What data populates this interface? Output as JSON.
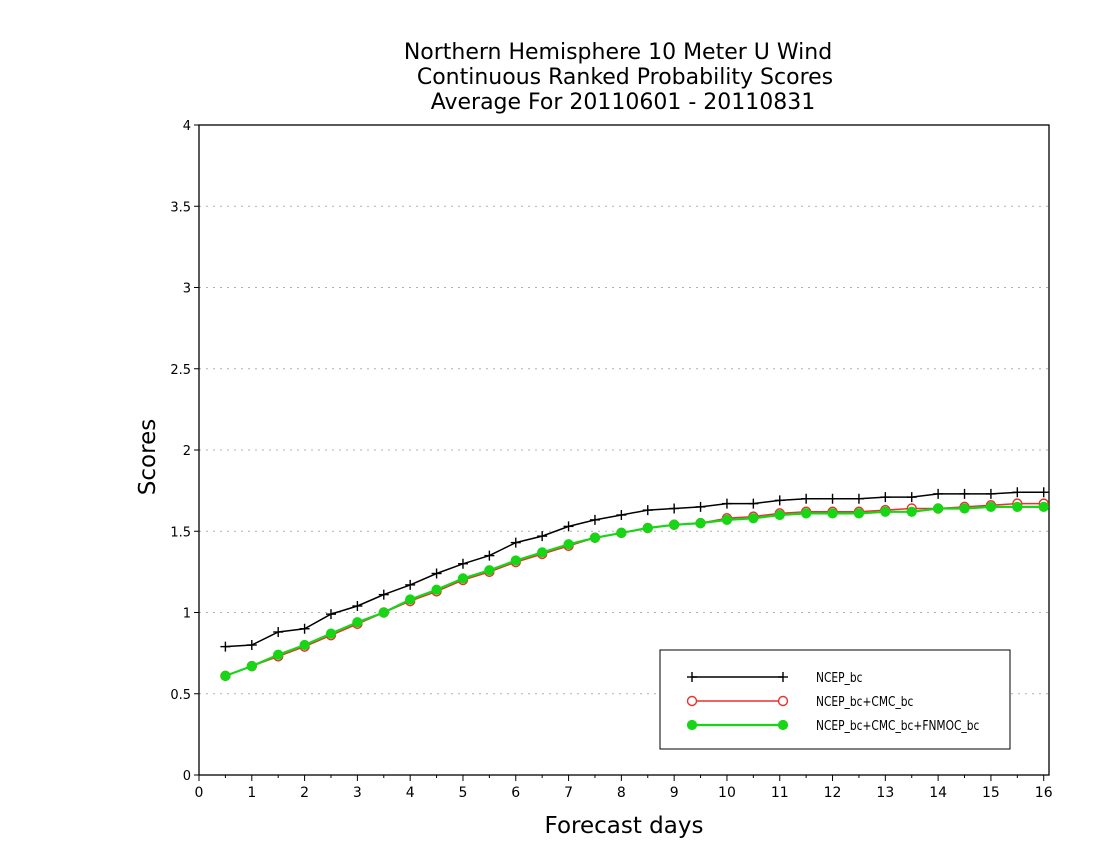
{
  "chart_data": {
    "type": "line",
    "title_lines": [
      "Northern Hemisphere 10 Meter U Wind",
      "Continuous Ranked Probability Scores",
      "Average For 20110601 - 20110831"
    ],
    "xlabel": "Forecast days",
    "ylabel": "Scores",
    "xlim": [
      0,
      16.1
    ],
    "ylim": [
      0,
      4
    ],
    "x_ticks": [
      0,
      1,
      2,
      3,
      4,
      5,
      6,
      7,
      8,
      9,
      10,
      11,
      12,
      13,
      14,
      15,
      16
    ],
    "y_ticks": [
      0,
      0.5,
      1,
      1.5,
      2,
      2.5,
      3,
      3.5,
      4
    ],
    "y_grid": true,
    "legend_position": "bottom-right",
    "x": [
      0.5,
      1,
      1.5,
      2,
      2.5,
      3,
      3.5,
      4,
      4.5,
      5,
      5.5,
      6,
      6.5,
      7,
      7.5,
      8,
      8.5,
      9,
      9.5,
      10,
      10.5,
      11,
      11.5,
      12,
      12.5,
      13,
      13.5,
      14,
      14.5,
      15,
      15.5,
      16
    ],
    "series": [
      {
        "name": "NCEP_bc",
        "color": "#000000",
        "marker": "plus",
        "values": [
          0.79,
          0.8,
          0.88,
          0.9,
          0.99,
          1.04,
          1.11,
          1.17,
          1.24,
          1.3,
          1.35,
          1.43,
          1.47,
          1.53,
          1.57,
          1.6,
          1.63,
          1.64,
          1.65,
          1.67,
          1.67,
          1.69,
          1.7,
          1.7,
          1.7,
          1.71,
          1.71,
          1.73,
          1.73,
          1.73,
          1.74,
          1.74
        ]
      },
      {
        "name": "NCEP_bc+CMC_bc",
        "color": "#e8312f",
        "marker": "open-circle",
        "values": [
          0.61,
          0.67,
          0.73,
          0.79,
          0.86,
          0.93,
          1.0,
          1.07,
          1.13,
          1.2,
          1.25,
          1.31,
          1.36,
          1.41,
          1.46,
          1.49,
          1.52,
          1.54,
          1.55,
          1.58,
          1.59,
          1.61,
          1.62,
          1.62,
          1.62,
          1.63,
          1.64,
          1.64,
          1.65,
          1.66,
          1.67,
          1.67
        ]
      },
      {
        "name": "NCEP_bc+CMC_bc+FNMOC_bc",
        "color": "#16d616",
        "marker": "filled-circle",
        "values": [
          0.61,
          0.67,
          0.74,
          0.8,
          0.87,
          0.94,
          1.0,
          1.08,
          1.14,
          1.21,
          1.26,
          1.32,
          1.37,
          1.42,
          1.46,
          1.49,
          1.52,
          1.54,
          1.55,
          1.57,
          1.58,
          1.6,
          1.61,
          1.61,
          1.61,
          1.62,
          1.62,
          1.64,
          1.64,
          1.65,
          1.65,
          1.65
        ]
      }
    ]
  }
}
